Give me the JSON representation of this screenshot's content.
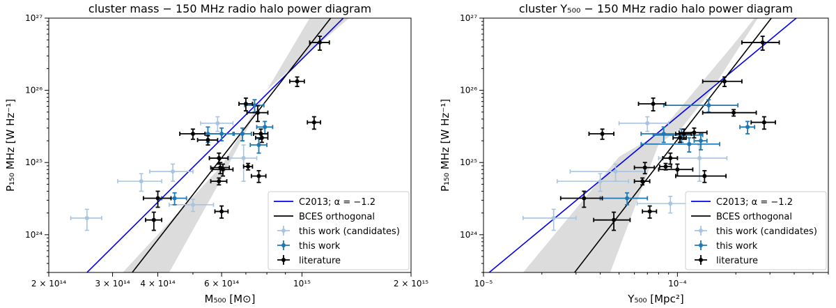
{
  "chart_data": [
    {
      "type": "scatter",
      "title": "cluster mass − 150 MHz radio halo power diagram",
      "xlabel": "M₅₀₀ [M⊙]",
      "ylabel": "P₁₅₀ MHz [W Hz⁻¹]",
      "xscale": "log",
      "yscale": "log",
      "xlim": [
        200000000000000.0,
        2000000000000000.0
      ],
      "ylim": [
        3e+23,
        1e+27
      ],
      "x_ticks": [
        {
          "v": 200000000000000.0,
          "label": "2 × 10¹⁴"
        },
        {
          "v": 300000000000000.0,
          "label": "3 × 10¹⁴"
        },
        {
          "v": 400000000000000.0,
          "label": "4 × 10¹⁴"
        },
        {
          "v": 600000000000000.0,
          "label": "6 × 10¹⁴"
        },
        {
          "v": 1000000000000000.0,
          "label": "10¹⁵"
        },
        {
          "v": 2000000000000000.0,
          "label": "2 × 10¹⁵"
        }
      ],
      "y_ticks": [
        {
          "v": 1e+24,
          "label": "10²⁴"
        },
        {
          "v": 1e+25,
          "label": "10²⁵"
        },
        {
          "v": 1e+26,
          "label": "10²⁶"
        },
        {
          "v": 1e+27,
          "label": "10²⁷"
        }
      ],
      "lines": [
        {
          "name": "C2013; α = −1.2",
          "color": "#0000ee",
          "points": [
            [
              255000000000000.0,
              3e+23
            ],
            [
              1300000000000000.0,
              1e+27
            ]
          ]
        },
        {
          "name": "BCES orthogonal",
          "color": "#000000",
          "points": [
            [
              340000000000000.0,
              3e+23
            ],
            [
              1200000000000000.0,
              1e+27
            ]
          ]
        }
      ],
      "band": {
        "upper": [
          [
            320000000000000.0,
            3e+23
          ],
          [
            600000000000000.0,
            9e+24
          ],
          [
            800000000000000.0,
            1e+26
          ],
          [
            1020000000000000.0,
            3e+26
          ],
          [
            1350000000000000.0,
            1e+27
          ],
          [
            2000000000000000.0,
            1e+27
          ]
        ],
        "lower": [
          [
            430000000000000.0,
            3e+23
          ],
          [
            600000000000000.0,
            6e+24
          ],
          [
            800000000000000.0,
            1e+26
          ],
          [
            1050000000000000.0,
            1e+27
          ]
        ]
      },
      "series": [
        {
          "name": "this work (candidates)",
          "color": "#a8c4e0",
          "points": [
            {
              "x": 255000000000000.0,
              "y": 1.7e+24,
              "xe": 25000000000000.0,
              "ye": 5.5e+23
            },
            {
              "x": 360000000000000.0,
              "y": 5.5e+24,
              "xe": 50000000000000.0,
              "ye": 1.5e+24
            },
            {
              "x": 440000000000000.0,
              "y": 7.5e+24,
              "xe": 60000000000000.0,
              "ye": 2e+24
            },
            {
              "x": 585000000000000.0,
              "y": 3.5e+25,
              "xe": 60000000000000.0,
              "ye": 8e+24
            },
            {
              "x": 690000000000000.0,
              "y": 1.15e+25,
              "xe": 60000000000000.0,
              "ye": 6e+24
            },
            {
              "x": 500000000000000.0,
              "y": 2.6e+24,
              "xe": 70000000000000.0,
              "ye": 5e+23
            }
          ]
        },
        {
          "name": "this work",
          "color": "#1f77b4",
          "points": [
            {
              "x": 445000000000000.0,
              "y": 3.2e+24,
              "xe": 35000000000000.0,
              "ye": 6e+23
            },
            {
              "x": 550000000000000.0,
              "y": 2.5e+25,
              "xe": 50000000000000.0,
              "ye": 6e+24
            },
            {
              "x": 600000000000000.0,
              "y": 2.5e+25,
              "xe": 50000000000000.0,
              "ye": 5e+24
            },
            {
              "x": 685000000000000.0,
              "y": 2.5e+25,
              "xe": 40000000000000.0,
              "ye": 5e+24
            },
            {
              "x": 740000000000000.0,
              "y": 6.2e+25,
              "xe": 45000000000000.0,
              "ye": 1.2e+25
            },
            {
              "x": 790000000000000.0,
              "y": 3.1e+25,
              "xe": 40000000000000.0,
              "ye": 6e+24
            },
            {
              "x": 760000000000000.0,
              "y": 1.75e+25,
              "xe": 40000000000000.0,
              "ye": 4e+24
            }
          ]
        },
        {
          "name": "literature",
          "color": "#000000",
          "points": [
            {
              "x": 400000000000000.0,
              "y": 3.2e+24,
              "xe": 35000000000000.0,
              "ye": 8e+23
            },
            {
              "x": 390000000000000.0,
              "y": 1.6e+24,
              "xe": 20000000000000.0,
              "ye": 4.5e+23
            },
            {
              "x": 500000000000000.0,
              "y": 2.5e+25,
              "xe": 40000000000000.0,
              "ye": 4e+24
            },
            {
              "x": 550000000000000.0,
              "y": 2.05e+25,
              "xe": 35000000000000.0,
              "ye": 3e+24
            },
            {
              "x": 590000000000000.0,
              "y": 1.15e+25,
              "xe": 35000000000000.0,
              "ye": 2e+24
            },
            {
              "x": 595000000000000.0,
              "y": 8.5e+24,
              "xe": 35000000000000.0,
              "ye": 1.5e+24
            },
            {
              "x": 605000000000000.0,
              "y": 8e+24,
              "xe": 40000000000000.0,
              "ye": 1.5e+24
            },
            {
              "x": 590000000000000.0,
              "y": 5.5e+24,
              "xe": 30000000000000.0,
              "ye": 6e+23
            },
            {
              "x": 600000000000000.0,
              "y": 2.1e+24,
              "xe": 25000000000000.0,
              "ye": 4e+23
            },
            {
              "x": 700000000000000.0,
              "y": 6.5e+25,
              "xe": 30000000000000.0,
              "ye": 1.3e+25
            },
            {
              "x": 755000000000000.0,
              "y": 4.9e+25,
              "xe": 50000000000000.0,
              "ye": 1.2e+25
            },
            {
              "x": 770000000000000.0,
              "y": 2.5e+25,
              "xe": 35000000000000.0,
              "ye": 4e+24
            },
            {
              "x": 775000000000000.0,
              "y": 2.2e+25,
              "xe": 30000000000000.0,
              "ye": 3e+24
            },
            {
              "x": 710000000000000.0,
              "y": 8.8e+24,
              "xe": 20000000000000.0,
              "ye": 9e+23
            },
            {
              "x": 760000000000000.0,
              "y": 6.5e+24,
              "xe": 35000000000000.0,
              "ye": 1.2e+24
            },
            {
              "x": 970000000000000.0,
              "y": 1.33e+26,
              "xe": 45000000000000.0,
              "ye": 2e+25
            },
            {
              "x": 1120000000000000.0,
              "y": 4.6e+26,
              "xe": 70000000000000.0,
              "ye": 1e+26
            },
            {
              "x": 1080000000000000.0,
              "y": 3.6e+25,
              "xe": 45000000000000.0,
              "ye": 7e+24
            }
          ]
        }
      ],
      "legend_position": "bottom-right",
      "grid": false
    },
    {
      "type": "scatter",
      "title": "cluster Y₅₀₀ − 150 MHz radio halo power diagram",
      "xlabel": "Y₅₀₀ [Mpc²]",
      "ylabel": "P₁₅₀ MHz [W Hz⁻¹]",
      "xscale": "log",
      "yscale": "log",
      "xlim": [
        1e-05,
        0.0006
      ],
      "ylim": [
        3e+23,
        1e+27
      ],
      "x_ticks": [
        {
          "v": 1e-05,
          "label": "10⁻⁵"
        },
        {
          "v": 0.0001,
          "label": "10⁻⁴"
        }
      ],
      "y_ticks": [
        {
          "v": 1e+24,
          "label": "10²⁴"
        },
        {
          "v": 1e+25,
          "label": "10²⁵"
        },
        {
          "v": 1e+26,
          "label": "10²⁶"
        },
        {
          "v": 1e+27,
          "label": "10²⁷"
        }
      ],
      "lines": [
        {
          "name": "C2013; α = −1.2",
          "color": "#0000ee",
          "points": [
            [
              1.07e-05,
              3e+23
            ],
            [
              0.00041,
              1e+27
            ]
          ]
        },
        {
          "name": "BCES orthogonal",
          "color": "#000000",
          "points": [
            [
              2.95e-05,
              3e+23
            ],
            [
              0.000305,
              1e+27
            ]
          ]
        }
      ],
      "band": {
        "upper": [
          [
            1.6e-05,
            3e+23
          ],
          [
            5e-05,
            1.2e+25
          ],
          [
            8e-05,
            2.5e+25
          ],
          [
            0.00019,
            4e+26
          ],
          [
            0.00025,
            1e+27
          ],
          [
            0.00055,
            1e+27
          ]
        ],
        "lower": [
          [
            4.5e-05,
            3e+23
          ],
          [
            8e-05,
            1.8e+25
          ],
          [
            0.000105,
            3e+25
          ],
          [
            0.00015,
            1e+26
          ],
          [
            0.00026,
            1e+27
          ]
        ]
      },
      "series": [
        {
          "name": "this work (candidates)",
          "color": "#a8c4e0",
          "points": [
            {
              "x": 2.3e-05,
              "y": 1.7e+24,
              "xe": 7e-06,
              "ye": 5.5e+23
            },
            {
              "x": 4e-05,
              "y": 5.5e+24,
              "xe": 1.6e-05,
              "ye": 1.5e+24
            },
            {
              "x": 4.8e-05,
              "y": 7.5e+24,
              "xe": 2e-05,
              "ye": 2e+24
            },
            {
              "x": 7e-05,
              "y": 3.5e+25,
              "xe": 2e-05,
              "ye": 8e+24
            },
            {
              "x": 9.2e-05,
              "y": 2.7e+24,
              "xe": 3e-05,
              "ye": 7e+23
            },
            {
              "x": 0.00013,
              "y": 1.15e+25,
              "xe": 5e-05,
              "ye": 6e+24
            }
          ]
        },
        {
          "name": "this work",
          "color": "#1f77b4",
          "points": [
            {
              "x": 5.5e-05,
              "y": 3.2e+24,
              "xe": 1.5e-05,
              "ye": 6e+23
            },
            {
              "x": 8.5e-05,
              "y": 2.5e+25,
              "xe": 2e-05,
              "ye": 6e+24
            },
            {
              "x": 0.000105,
              "y": 2.4e+25,
              "xe": 3e-05,
              "ye": 5e+24
            },
            {
              "x": 0.000115,
              "y": 1.8e+25,
              "xe": 5e-05,
              "ye": 4e+24
            },
            {
              "x": 0.000132,
              "y": 2e+25,
              "xe": 1e-05,
              "ye": 5e+24
            },
            {
              "x": 0.000145,
              "y": 6.2e+25,
              "xe": 6e-05,
              "ye": 1.2e+25
            },
            {
              "x": 0.00023,
              "y": 3.1e+25,
              "xe": 2e-05,
              "ye": 6e+24
            }
          ]
        },
        {
          "name": "literature",
          "color": "#000000",
          "points": [
            {
              "x": 3.3e-05,
              "y": 3.2e+24,
              "xe": 8e-06,
              "ye": 8e+23
            },
            {
              "x": 4.7e-05,
              "y": 1.6e+24,
              "xe": 1e-05,
              "ye": 4.5e+23
            },
            {
              "x": 4.1e-05,
              "y": 2.5e+25,
              "xe": 6e-06,
              "ye": 4e+24
            },
            {
              "x": 6.6e-05,
              "y": 5.5e+24,
              "xe": 6e-06,
              "ye": 6e+23
            },
            {
              "x": 6.8e-05,
              "y": 8.5e+24,
              "xe": 8e-06,
              "ye": 1.5e+24
            },
            {
              "x": 7.2e-05,
              "y": 2.1e+24,
              "xe": 6e-06,
              "ye": 4e+23
            },
            {
              "x": 7.5e-05,
              "y": 6.5e+25,
              "xe": 1.2e-05,
              "ye": 1.3e+25
            },
            {
              "x": 8.7e-05,
              "y": 8.8e+24,
              "xe": 6e-06,
              "ye": 9e+23
            },
            {
              "x": 9.2e-05,
              "y": 1.15e+25,
              "xe": 8e-06,
              "ye": 2e+24
            },
            {
              "x": 0.0001,
              "y": 8e+24,
              "xe": 2e-05,
              "ye": 1.5e+24
            },
            {
              "x": 0.000103,
              "y": 2.2e+25,
              "xe": 8e-06,
              "ye": 3e+24
            },
            {
              "x": 0.000108,
              "y": 2.5e+25,
              "xe": 1e-05,
              "ye": 4e+24
            },
            {
              "x": 0.000122,
              "y": 2.6e+25,
              "xe": 2e-05,
              "ye": 4e+24
            },
            {
              "x": 0.000138,
              "y": 6.5e+24,
              "xe": 4e-05,
              "ye": 1.2e+24
            },
            {
              "x": 0.000175,
              "y": 1.33e+26,
              "xe": 4e-05,
              "ye": 2e+25
            },
            {
              "x": 0.000195,
              "y": 4.9e+25,
              "xe": 6e-05,
              "ye": 5e+24
            },
            {
              "x": 0.000275,
              "y": 4.6e+26,
              "xe": 6e-05,
              "ye": 1e+26
            },
            {
              "x": 0.00028,
              "y": 3.6e+25,
              "xe": 4e-05,
              "ye": 7e+24
            }
          ]
        }
      ],
      "legend_position": "bottom-right",
      "grid": false
    }
  ]
}
